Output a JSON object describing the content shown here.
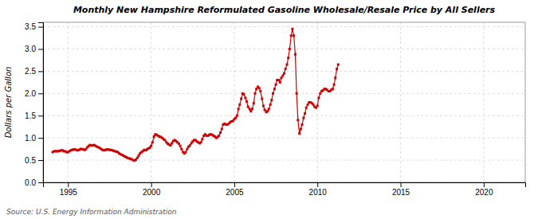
{
  "chart_data": {
    "type": "line",
    "title": "Monthly New Hampshire Reformulated Gasoline Wholesale/Resale Price by All Sellers",
    "ylabel": "Dollars per Gallon",
    "source": "Source: U.S. Energy Information Administration",
    "color": "#cc0000",
    "marker": "square",
    "grid": true,
    "xlim": [
      1993.5,
      2022.5
    ],
    "ylim": [
      0.0,
      3.6
    ],
    "xticks": [
      1995,
      2000,
      2005,
      2010,
      2015,
      2020
    ],
    "yticks": [
      {
        "value": 0.0,
        "label": "0.0"
      },
      0.5,
      {
        "value": 1.0,
        "label": "1.0"
      },
      1.5,
      {
        "value": 2.0,
        "label": "2.0"
      },
      2.5,
      {
        "value": 3.0,
        "label": "3.0"
      },
      3.5
    ],
    "x": [
      1994.08,
      1994.17,
      1994.25,
      1994.33,
      1994.42,
      1994.5,
      1994.58,
      1994.67,
      1994.75,
      1994.83,
      1994.92,
      1995.0,
      1995.08,
      1995.17,
      1995.25,
      1995.33,
      1995.42,
      1995.5,
      1995.58,
      1995.67,
      1995.75,
      1995.83,
      1995.92,
      1996.0,
      1996.08,
      1996.17,
      1996.25,
      1996.33,
      1996.42,
      1996.5,
      1996.58,
      1996.67,
      1996.75,
      1996.83,
      1996.92,
      1997.0,
      1997.08,
      1997.17,
      1997.25,
      1997.33,
      1997.42,
      1997.5,
      1997.58,
      1997.67,
      1997.75,
      1997.83,
      1997.92,
      1998.0,
      1998.08,
      1998.17,
      1998.25,
      1998.33,
      1998.42,
      1998.5,
      1998.58,
      1998.67,
      1998.75,
      1998.83,
      1998.92,
      1999.0,
      1999.08,
      1999.17,
      1999.25,
      1999.33,
      1999.42,
      1999.5,
      1999.58,
      1999.67,
      1999.75,
      1999.83,
      1999.92,
      2000.0,
      2000.08,
      2000.17,
      2000.25,
      2000.33,
      2000.42,
      2000.5,
      2000.58,
      2000.67,
      2000.75,
      2000.83,
      2000.92,
      2001.0,
      2001.08,
      2001.17,
      2001.25,
      2001.33,
      2001.42,
      2001.5,
      2001.58,
      2001.67,
      2001.75,
      2001.83,
      2001.92,
      2002.0,
      2002.08,
      2002.17,
      2002.25,
      2002.33,
      2002.42,
      2002.5,
      2002.58,
      2002.67,
      2002.75,
      2002.83,
      2002.92,
      2003.0,
      2003.08,
      2003.17,
      2003.25,
      2003.33,
      2003.42,
      2003.5,
      2003.58,
      2003.67,
      2003.75,
      2003.83,
      2003.92,
      2004.0,
      2004.08,
      2004.17,
      2004.25,
      2004.33,
      2004.42,
      2004.5,
      2004.58,
      2004.67,
      2004.75,
      2004.83,
      2004.92,
      2005.0,
      2005.08,
      2005.17,
      2005.25,
      2005.33,
      2005.42,
      2005.5,
      2005.58,
      2005.67,
      2005.75,
      2005.83,
      2005.92,
      2006.0,
      2006.08,
      2006.17,
      2006.25,
      2006.33,
      2006.42,
      2006.5,
      2006.58,
      2006.67,
      2006.75,
      2006.83,
      2006.92,
      2007.0,
      2007.08,
      2007.17,
      2007.25,
      2007.33,
      2007.42,
      2007.5,
      2007.58,
      2007.67,
      2007.75,
      2007.83,
      2007.92,
      2008.0,
      2008.08,
      2008.17,
      2008.25,
      2008.33,
      2008.42,
      2008.5,
      2008.58,
      2008.67,
      2008.75,
      2008.83,
      2008.92,
      2009.0,
      2009.08,
      2009.17,
      2009.25,
      2009.33,
      2009.42,
      2009.5,
      2009.58,
      2009.67,
      2009.75,
      2009.83,
      2009.92,
      2010.0,
      2010.08,
      2010.17,
      2010.25,
      2010.33,
      2010.42,
      2010.5,
      2010.58,
      2010.67,
      2010.75,
      2010.83,
      2010.92,
      2011.0,
      2011.08,
      2011.17,
      2011.25
    ],
    "values": [
      0.68,
      0.7,
      0.7,
      0.7,
      0.7,
      0.71,
      0.72,
      0.72,
      0.7,
      0.7,
      0.68,
      0.68,
      0.7,
      0.72,
      0.73,
      0.74,
      0.74,
      0.73,
      0.72,
      0.73,
      0.75,
      0.75,
      0.74,
      0.73,
      0.75,
      0.79,
      0.82,
      0.84,
      0.83,
      0.83,
      0.84,
      0.82,
      0.8,
      0.79,
      0.77,
      0.75,
      0.73,
      0.72,
      0.73,
      0.74,
      0.74,
      0.73,
      0.73,
      0.72,
      0.71,
      0.7,
      0.69,
      0.68,
      0.65,
      0.63,
      0.62,
      0.6,
      0.58,
      0.57,
      0.55,
      0.54,
      0.53,
      0.52,
      0.5,
      0.49,
      0.51,
      0.55,
      0.6,
      0.65,
      0.68,
      0.7,
      0.73,
      0.72,
      0.74,
      0.76,
      0.78,
      0.82,
      0.9,
      1.03,
      1.08,
      1.07,
      1.05,
      1.03,
      1.02,
      1.0,
      0.97,
      0.95,
      0.9,
      0.87,
      0.85,
      0.83,
      0.88,
      0.93,
      0.95,
      0.93,
      0.9,
      0.87,
      0.82,
      0.75,
      0.68,
      0.65,
      0.68,
      0.75,
      0.8,
      0.83,
      0.88,
      0.92,
      0.95,
      0.95,
      0.92,
      0.9,
      0.88,
      0.9,
      0.97,
      1.05,
      1.08,
      1.05,
      1.05,
      1.07,
      1.08,
      1.07,
      1.05,
      1.03,
      1.0,
      1.02,
      1.05,
      1.12,
      1.2,
      1.3,
      1.32,
      1.3,
      1.3,
      1.32,
      1.35,
      1.37,
      1.38,
      1.42,
      1.45,
      1.5,
      1.65,
      1.75,
      1.88,
      2.0,
      1.98,
      1.9,
      1.82,
      1.7,
      1.65,
      1.6,
      1.65,
      1.78,
      2.0,
      2.1,
      2.15,
      2.12,
      2.05,
      1.88,
      1.72,
      1.63,
      1.58,
      1.6,
      1.65,
      1.75,
      1.85,
      2.0,
      2.1,
      2.2,
      2.3,
      2.3,
      2.25,
      2.35,
      2.4,
      2.45,
      2.55,
      2.65,
      2.8,
      3.0,
      3.3,
      3.45,
      3.3,
      2.88,
      2.0,
      1.4,
      1.1,
      1.2,
      1.3,
      1.45,
      1.55,
      1.68,
      1.75,
      1.8,
      1.8,
      1.78,
      1.75,
      1.7,
      1.68,
      1.72,
      1.9,
      2.0,
      2.05,
      2.07,
      2.1,
      2.1,
      2.08,
      2.05,
      2.05,
      2.08,
      2.1,
      2.2,
      2.35,
      2.55,
      2.65
    ]
  }
}
